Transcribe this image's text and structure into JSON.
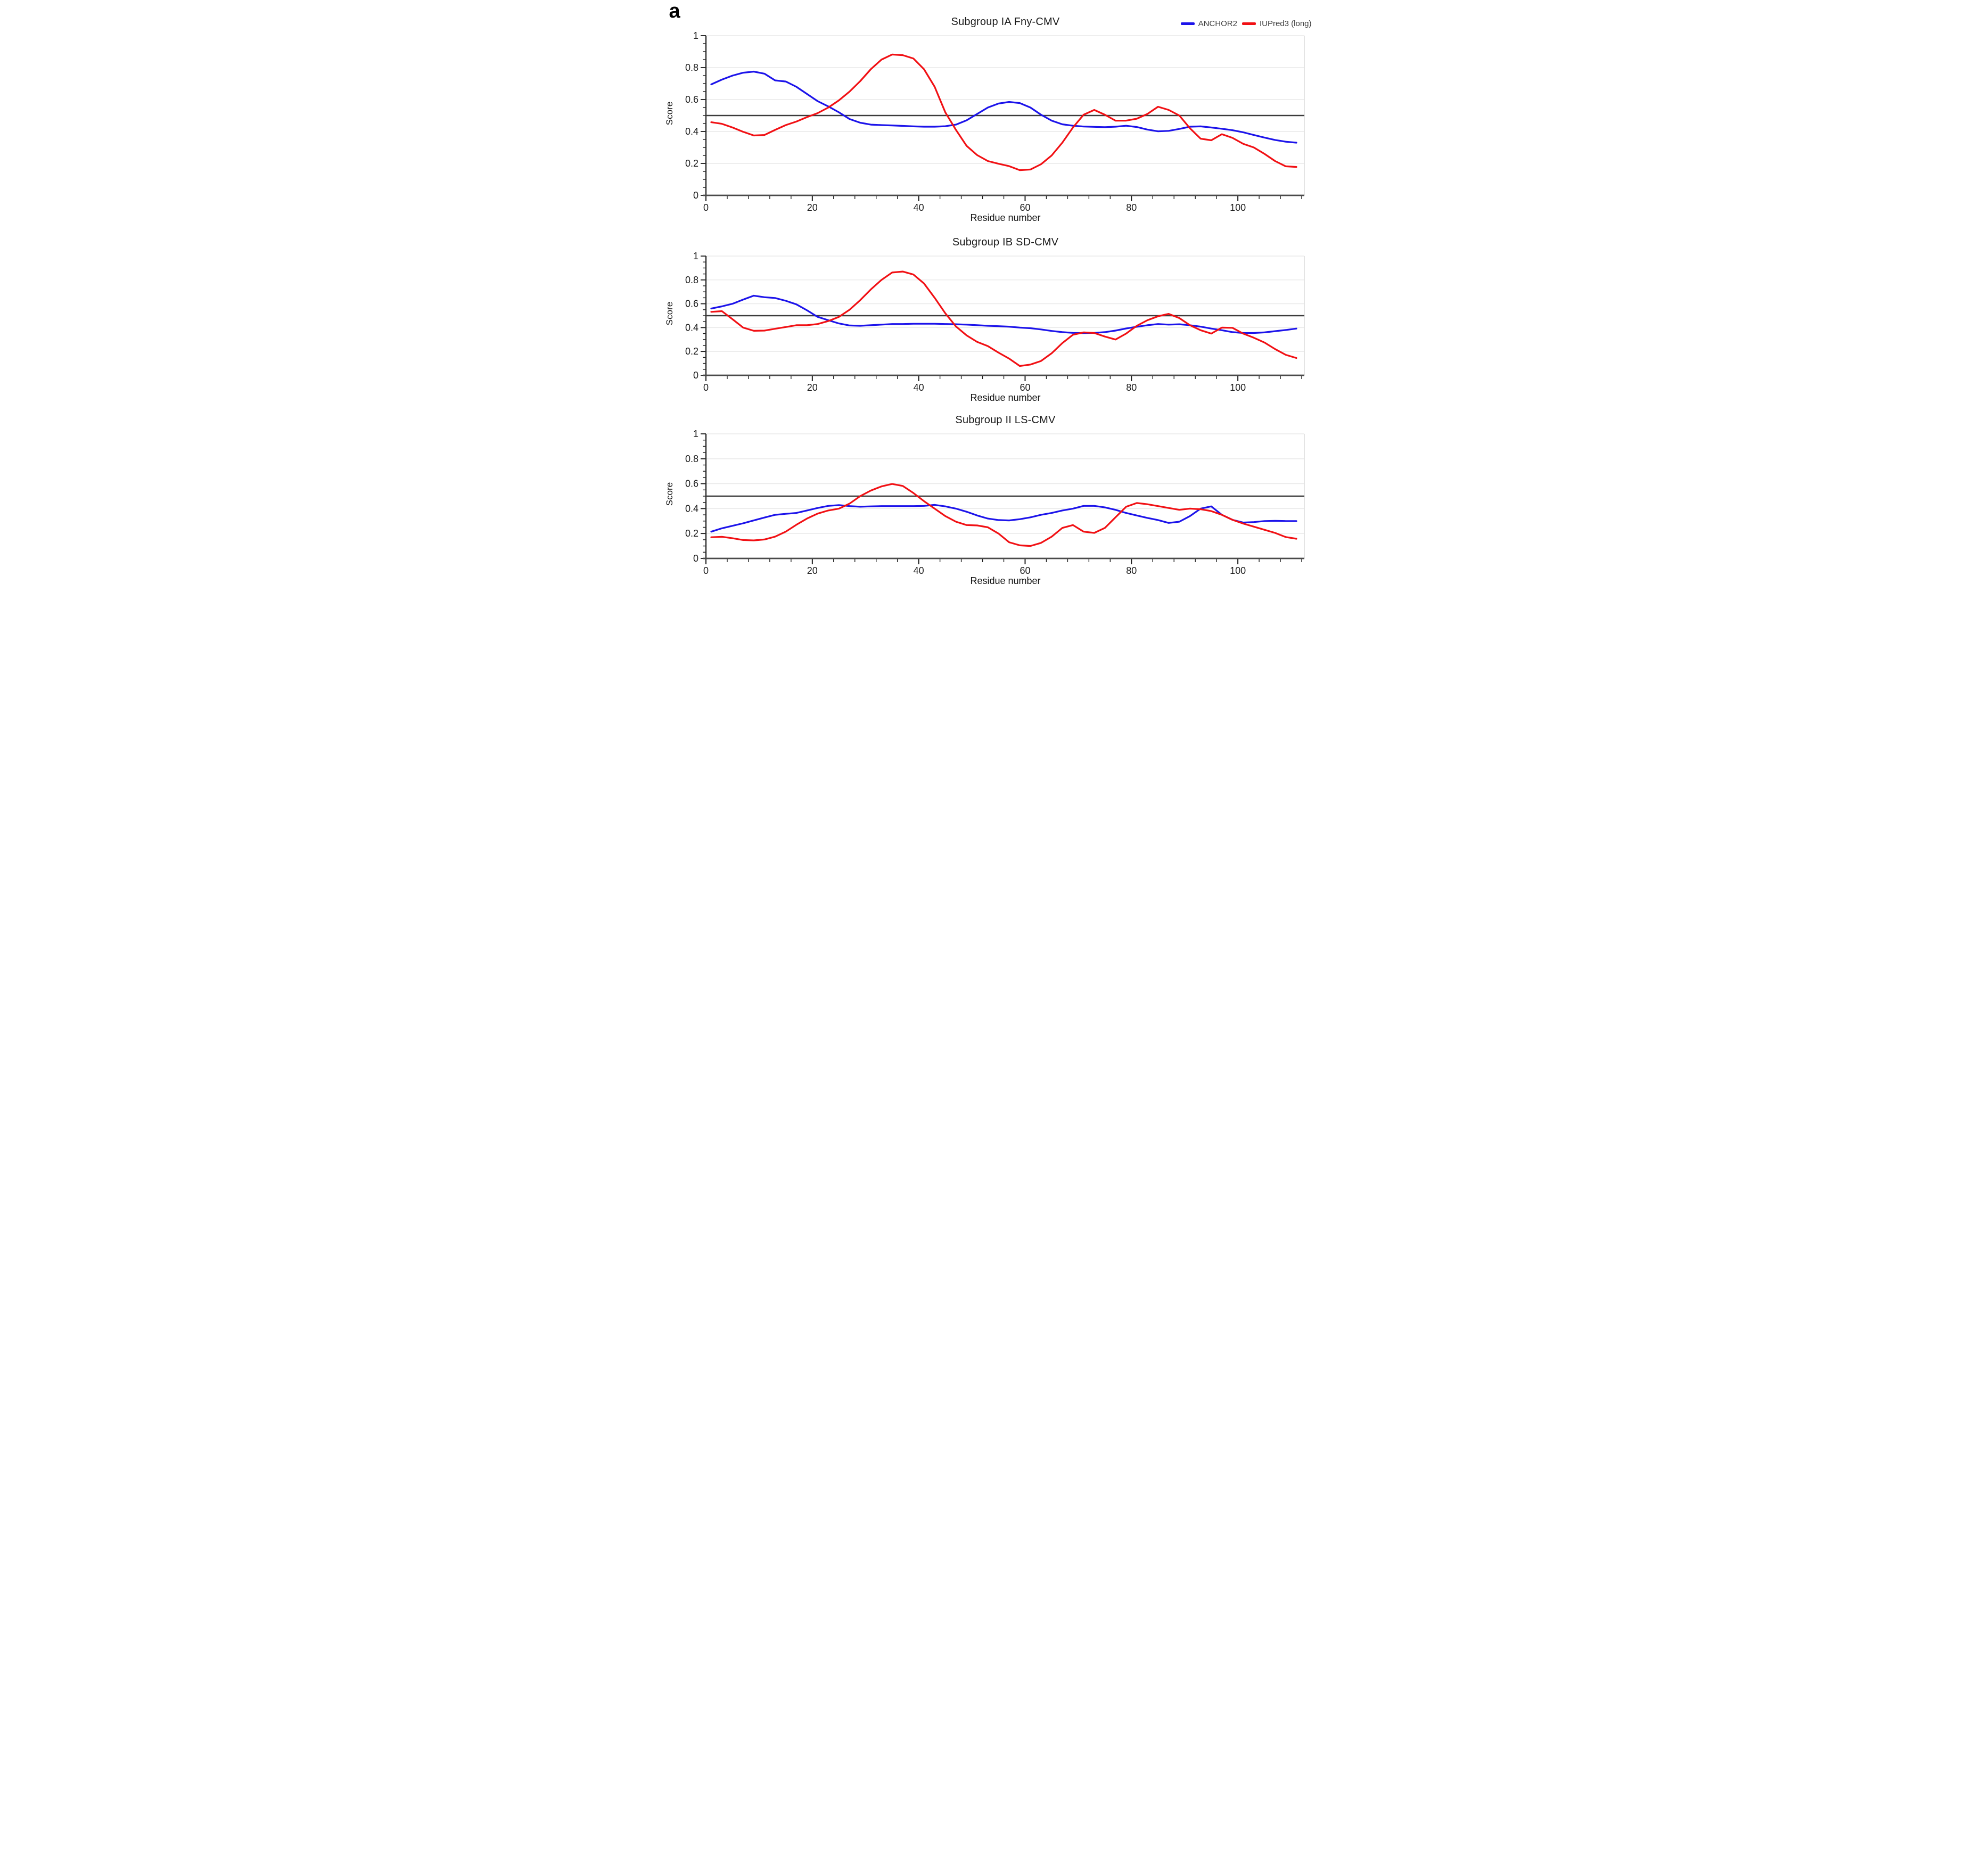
{
  "figure_label": "a",
  "colors": {
    "anchor2": "#1c13ea",
    "iupred3": "#f11014",
    "threshold_line": "#3c3c3c",
    "gridline": "#e8e8e8",
    "plot_border": "#d9d9d9",
    "x_axis": "#4a4a4a",
    "y_axis": "#2b2b2b",
    "tick": "#1a1a1a",
    "legend_text": "#3d3d3d"
  },
  "legend": {
    "position": "top-right",
    "items": [
      {
        "label": "ANCHOR2",
        "color": "#1c13ea"
      },
      {
        "label": "IUPred3 (long)",
        "color": "#f11014"
      }
    ]
  },
  "chart_data": [
    {
      "type": "line",
      "title": "Subgroup IA Fny-CMV",
      "xlabel": "Residue number",
      "ylabel": "Score",
      "x_range": [
        0,
        112.5
      ],
      "y_range": [
        0,
        1
      ],
      "x_ticks": [
        0,
        20,
        40,
        60,
        80,
        100
      ],
      "x_tick_labels": [
        "0",
        "20",
        "40",
        "60",
        "80",
        "100"
      ],
      "y_ticks": [
        0,
        0.2,
        0.4,
        0.6,
        0.8,
        1
      ],
      "y_tick_labels": [
        "0",
        "0.2",
        "0.4",
        "0.6",
        "0.8",
        "1"
      ],
      "x_minor_step": 4,
      "y_minor_step": 0.05,
      "threshold": 0.5,
      "grid": "horizontal-major",
      "x_start": 1,
      "x_step": 2,
      "series": [
        {
          "name": "ANCHOR2",
          "color": "#1c13ea",
          "values": [
            0.695,
            0.725,
            0.75,
            0.768,
            0.775,
            0.762,
            0.72,
            0.713,
            0.68,
            0.635,
            0.59,
            0.557,
            0.52,
            0.478,
            0.455,
            0.443,
            0.44,
            0.438,
            0.435,
            0.432,
            0.43,
            0.43,
            0.433,
            0.443,
            0.47,
            0.51,
            0.55,
            0.575,
            0.585,
            0.578,
            0.55,
            0.505,
            0.468,
            0.445,
            0.436,
            0.431,
            0.429,
            0.427,
            0.43,
            0.436,
            0.428,
            0.412,
            0.401,
            0.404,
            0.416,
            0.43,
            0.432,
            0.425,
            0.417,
            0.408,
            0.395,
            0.378,
            0.362,
            0.347,
            0.336,
            0.33
          ]
        },
        {
          "name": "IUPred3 (long)",
          "color": "#f11014",
          "values": [
            0.458,
            0.448,
            0.425,
            0.398,
            0.375,
            0.378,
            0.41,
            0.44,
            0.462,
            0.49,
            0.515,
            0.55,
            0.595,
            0.65,
            0.715,
            0.79,
            0.85,
            0.882,
            0.878,
            0.857,
            0.79,
            0.68,
            0.52,
            0.41,
            0.31,
            0.252,
            0.215,
            0.198,
            0.183,
            0.158,
            0.162,
            0.195,
            0.25,
            0.33,
            0.425,
            0.505,
            0.535,
            0.505,
            0.468,
            0.468,
            0.48,
            0.51,
            0.555,
            0.535,
            0.5,
            0.42,
            0.355,
            0.345,
            0.383,
            0.36,
            0.323,
            0.3,
            0.26,
            0.215,
            0.182,
            0.178
          ]
        }
      ]
    },
    {
      "type": "line",
      "title": "Subgroup IB SD-CMV",
      "xlabel": "Residue number",
      "ylabel": "Score",
      "x_range": [
        0,
        112.5
      ],
      "y_range": [
        0,
        1
      ],
      "x_ticks": [
        0,
        20,
        40,
        60,
        80,
        100
      ],
      "x_tick_labels": [
        "0",
        "20",
        "40",
        "60",
        "80",
        "100"
      ],
      "y_ticks": [
        0,
        0.2,
        0.4,
        0.6,
        0.8,
        1
      ],
      "y_tick_labels": [
        "0",
        "0.2",
        "0.4",
        "0.6",
        "0.8",
        "1"
      ],
      "x_minor_step": 4,
      "y_minor_step": 0.05,
      "threshold": 0.5,
      "grid": "horizontal-major",
      "x_start": 1,
      "x_step": 2,
      "series": [
        {
          "name": "ANCHOR2",
          "color": "#1c13ea",
          "values": [
            0.56,
            0.578,
            0.6,
            0.635,
            0.668,
            0.655,
            0.648,
            0.625,
            0.595,
            0.545,
            0.49,
            0.462,
            0.435,
            0.418,
            0.415,
            0.42,
            0.425,
            0.43,
            0.43,
            0.432,
            0.432,
            0.432,
            0.43,
            0.428,
            0.425,
            0.42,
            0.415,
            0.412,
            0.408,
            0.4,
            0.395,
            0.385,
            0.372,
            0.362,
            0.356,
            0.354,
            0.356,
            0.362,
            0.375,
            0.393,
            0.407,
            0.42,
            0.43,
            0.425,
            0.428,
            0.42,
            0.408,
            0.392,
            0.378,
            0.362,
            0.355,
            0.355,
            0.36,
            0.37,
            0.38,
            0.392
          ]
        },
        {
          "name": "IUPred3 (long)",
          "color": "#f11014",
          "values": [
            0.532,
            0.538,
            0.47,
            0.4,
            0.373,
            0.375,
            0.39,
            0.405,
            0.42,
            0.42,
            0.43,
            0.455,
            0.49,
            0.55,
            0.63,
            0.72,
            0.8,
            0.862,
            0.87,
            0.845,
            0.77,
            0.65,
            0.52,
            0.41,
            0.335,
            0.28,
            0.245,
            0.19,
            0.14,
            0.078,
            0.09,
            0.12,
            0.185,
            0.27,
            0.34,
            0.36,
            0.355,
            0.325,
            0.3,
            0.35,
            0.415,
            0.462,
            0.495,
            0.515,
            0.48,
            0.42,
            0.378,
            0.35,
            0.4,
            0.398,
            0.35,
            0.315,
            0.275,
            0.22,
            0.172,
            0.145
          ]
        }
      ]
    },
    {
      "type": "line",
      "title": "Subgroup II LS-CMV",
      "xlabel": "Residue number",
      "ylabel": "Score",
      "x_range": [
        0,
        112.5
      ],
      "y_range": [
        0,
        1
      ],
      "x_ticks": [
        0,
        20,
        40,
        60,
        80,
        100
      ],
      "x_tick_labels": [
        "0",
        "20",
        "40",
        "60",
        "80",
        "100"
      ],
      "y_ticks": [
        0,
        0.2,
        0.4,
        0.6,
        0.8,
        1
      ],
      "y_tick_labels": [
        "0",
        "0.2",
        "0.4",
        "0.6",
        "0.8",
        "1"
      ],
      "x_minor_step": 4,
      "y_minor_step": 0.05,
      "threshold": 0.5,
      "grid": "horizontal-major",
      "x_start": 1,
      "x_step": 2,
      "series": [
        {
          "name": "ANCHOR2",
          "color": "#1c13ea",
          "values": [
            0.215,
            0.242,
            0.262,
            0.282,
            0.305,
            0.328,
            0.35,
            0.358,
            0.365,
            0.385,
            0.405,
            0.422,
            0.428,
            0.42,
            0.415,
            0.418,
            0.42,
            0.42,
            0.42,
            0.42,
            0.422,
            0.43,
            0.418,
            0.4,
            0.375,
            0.345,
            0.32,
            0.308,
            0.305,
            0.315,
            0.33,
            0.35,
            0.365,
            0.385,
            0.4,
            0.422,
            0.422,
            0.41,
            0.39,
            0.365,
            0.345,
            0.325,
            0.308,
            0.285,
            0.295,
            0.34,
            0.4,
            0.418,
            0.35,
            0.31,
            0.288,
            0.292,
            0.3,
            0.302,
            0.3,
            0.3
          ]
        },
        {
          "name": "IUPred3 (long)",
          "color": "#f11014",
          "values": [
            0.17,
            0.174,
            0.162,
            0.148,
            0.145,
            0.152,
            0.175,
            0.215,
            0.27,
            0.32,
            0.36,
            0.385,
            0.4,
            0.44,
            0.5,
            0.545,
            0.578,
            0.598,
            0.582,
            0.525,
            0.46,
            0.4,
            0.34,
            0.295,
            0.268,
            0.265,
            0.25,
            0.2,
            0.13,
            0.105,
            0.1,
            0.125,
            0.175,
            0.245,
            0.268,
            0.215,
            0.205,
            0.245,
            0.33,
            0.415,
            0.445,
            0.435,
            0.42,
            0.405,
            0.39,
            0.4,
            0.395,
            0.38,
            0.35,
            0.31,
            0.28,
            0.255,
            0.23,
            0.205,
            0.172,
            0.158
          ]
        }
      ]
    }
  ]
}
